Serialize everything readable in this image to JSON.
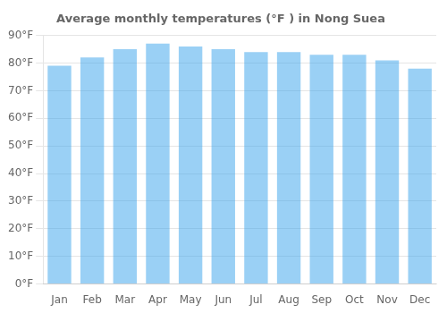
{
  "chart_data": {
    "type": "bar",
    "title": "Average monthly temperatures (°F ) in Nong Suea",
    "categories": [
      "Jan",
      "Feb",
      "Mar",
      "Apr",
      "May",
      "Jun",
      "Jul",
      "Aug",
      "Sep",
      "Oct",
      "Nov",
      "Dec"
    ],
    "values": [
      79,
      82,
      85,
      87,
      86,
      85,
      84,
      84,
      83,
      83,
      81,
      78
    ],
    "ylim": [
      0,
      90
    ],
    "yticks": [
      {
        "value": 0,
        "label": "0°F"
      },
      {
        "value": 10,
        "label": "10°F"
      },
      {
        "value": 20,
        "label": "20°F"
      },
      {
        "value": 30,
        "label": "30°F"
      },
      {
        "value": 40,
        "label": "40°F"
      },
      {
        "value": 50,
        "label": "50°F"
      },
      {
        "value": 60,
        "label": "60°F"
      },
      {
        "value": 70,
        "label": "70°F"
      },
      {
        "value": 80,
        "label": "80°F"
      },
      {
        "value": 90,
        "label": "90°F"
      }
    ],
    "grid": true
  }
}
